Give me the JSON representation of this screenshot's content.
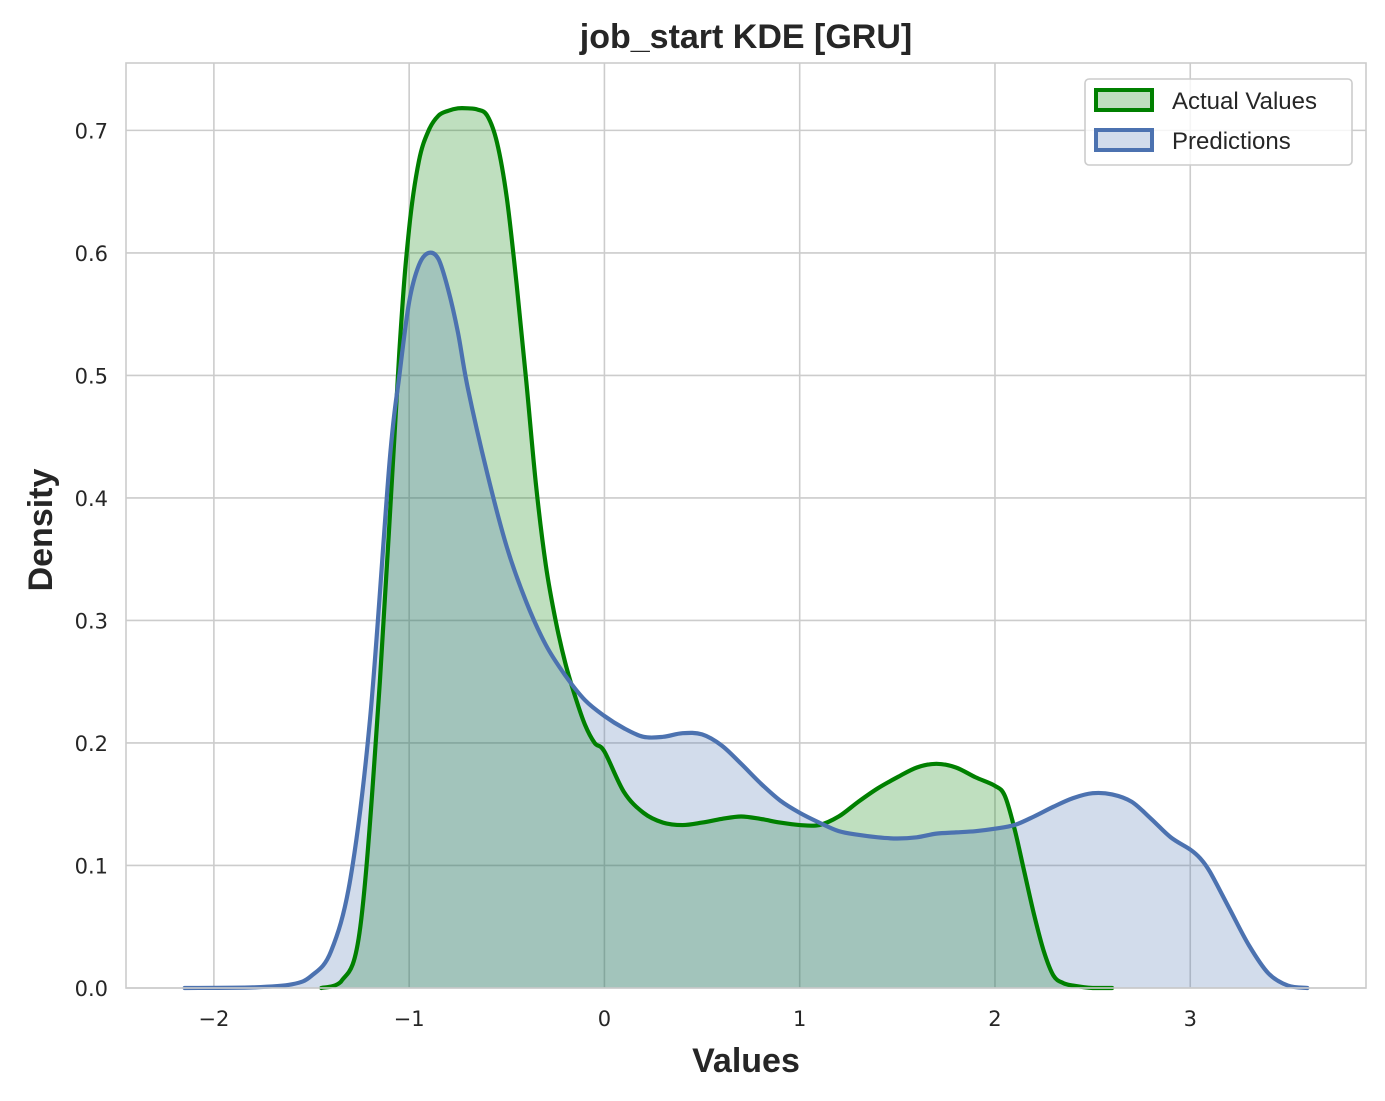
{
  "chart_data": {
    "type": "area",
    "title": "job_start KDE [GRU]",
    "xlabel": "Values",
    "ylabel": "Density",
    "xlim": [
      -2.45,
      3.9
    ],
    "ylim": [
      0,
      0.755
    ],
    "xticks": [
      -2,
      -1,
      0,
      1,
      2,
      3
    ],
    "xtick_labels": [
      "−2",
      "−1",
      "0",
      "1",
      "2",
      "3"
    ],
    "yticks": [
      0.0,
      0.1,
      0.2,
      0.3,
      0.4,
      0.5,
      0.6,
      0.7
    ],
    "ytick_labels": [
      "0.0",
      "0.1",
      "0.2",
      "0.3",
      "0.4",
      "0.5",
      "0.6",
      "0.7"
    ],
    "grid": true,
    "legend_position": "top-right",
    "series": [
      {
        "name": "Actual Values",
        "line_color": "#008000",
        "fill_color": "#008000",
        "fill_opacity": 0.25,
        "x": [
          -1.45,
          -1.35,
          -1.25,
          -1.15,
          -1.05,
          -1.0,
          -0.95,
          -0.9,
          -0.85,
          -0.8,
          -0.75,
          -0.7,
          -0.65,
          -0.6,
          -0.55,
          -0.5,
          -0.45,
          -0.4,
          -0.35,
          -0.3,
          -0.25,
          -0.2,
          -0.15,
          -0.1,
          -0.05,
          0.0,
          0.1,
          0.2,
          0.3,
          0.4,
          0.5,
          0.6,
          0.7,
          0.8,
          0.9,
          1.0,
          1.1,
          1.2,
          1.3,
          1.4,
          1.5,
          1.6,
          1.7,
          1.8,
          1.9,
          2.0,
          2.05,
          2.1,
          2.15,
          2.2,
          2.25,
          2.3,
          2.35,
          2.4,
          2.5,
          2.6
        ],
        "y": [
          0.0,
          0.005,
          0.05,
          0.25,
          0.52,
          0.62,
          0.675,
          0.7,
          0.712,
          0.716,
          0.718,
          0.718,
          0.717,
          0.712,
          0.69,
          0.645,
          0.575,
          0.495,
          0.41,
          0.345,
          0.3,
          0.265,
          0.238,
          0.215,
          0.2,
          0.193,
          0.16,
          0.143,
          0.135,
          0.133,
          0.135,
          0.138,
          0.14,
          0.138,
          0.135,
          0.133,
          0.133,
          0.14,
          0.152,
          0.163,
          0.172,
          0.18,
          0.183,
          0.18,
          0.172,
          0.165,
          0.157,
          0.13,
          0.095,
          0.06,
          0.03,
          0.01,
          0.004,
          0.002,
          0.0,
          0.0
        ]
      },
      {
        "name": "Predictions",
        "line_color": "#4c72b0",
        "fill_color": "#4c72b0",
        "fill_opacity": 0.25,
        "x": [
          -2.15,
          -1.8,
          -1.6,
          -1.5,
          -1.4,
          -1.3,
          -1.2,
          -1.1,
          -1.05,
          -1.0,
          -0.95,
          -0.9,
          -0.85,
          -0.8,
          -0.75,
          -0.7,
          -0.6,
          -0.5,
          -0.4,
          -0.3,
          -0.2,
          -0.1,
          0.0,
          0.1,
          0.2,
          0.3,
          0.4,
          0.5,
          0.6,
          0.7,
          0.8,
          0.9,
          1.0,
          1.1,
          1.2,
          1.3,
          1.4,
          1.5,
          1.6,
          1.7,
          1.8,
          1.9,
          2.0,
          2.1,
          2.2,
          2.3,
          2.4,
          2.5,
          2.6,
          2.7,
          2.8,
          2.9,
          3.0,
          3.05,
          3.1,
          3.2,
          3.3,
          3.4,
          3.5,
          3.6
        ],
        "y": [
          0.0,
          0.0005,
          0.003,
          0.01,
          0.03,
          0.09,
          0.22,
          0.43,
          0.5,
          0.56,
          0.59,
          0.6,
          0.595,
          0.57,
          0.535,
          0.49,
          0.42,
          0.36,
          0.315,
          0.28,
          0.255,
          0.235,
          0.222,
          0.212,
          0.205,
          0.205,
          0.208,
          0.207,
          0.198,
          0.183,
          0.167,
          0.153,
          0.143,
          0.135,
          0.128,
          0.125,
          0.123,
          0.122,
          0.123,
          0.126,
          0.127,
          0.128,
          0.13,
          0.133,
          0.14,
          0.148,
          0.155,
          0.159,
          0.158,
          0.152,
          0.138,
          0.123,
          0.113,
          0.106,
          0.095,
          0.065,
          0.035,
          0.012,
          0.002,
          0.0
        ]
      }
    ]
  }
}
